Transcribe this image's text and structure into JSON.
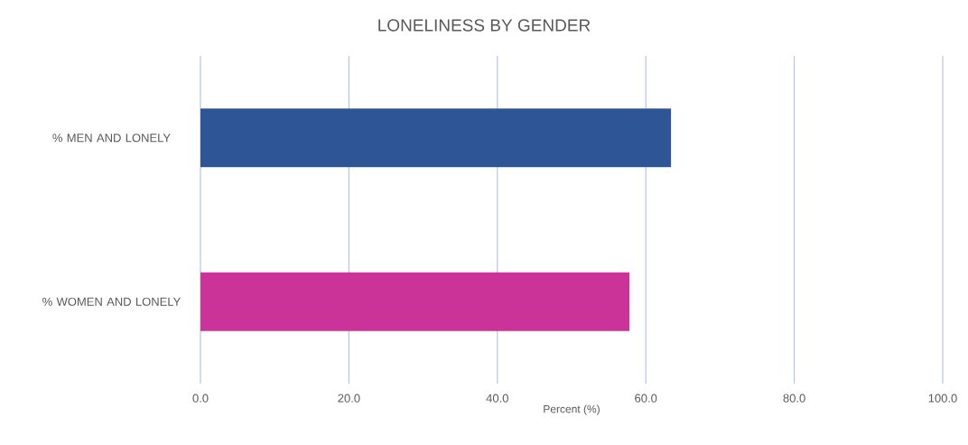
{
  "chart_data": {
    "type": "bar",
    "orientation": "horizontal",
    "title": "LONELINESS BY GENDER",
    "xlabel": "Percent (%)",
    "categories": [
      "% MEN AND LONELY",
      "% WOMEN AND LONELY"
    ],
    "values": [
      63.4,
      57.8
    ],
    "colors": [
      "#2e5596",
      "#cc3399"
    ],
    "xlim": [
      0,
      100
    ],
    "xticks": [
      {
        "value": 0,
        "label": "0.0"
      },
      {
        "value": 20,
        "label": "20.0"
      },
      {
        "value": 40,
        "label": "40.0"
      },
      {
        "value": 60,
        "label": "60.0"
      },
      {
        "value": 80,
        "label": "80.0"
      },
      {
        "value": 100,
        "label": "100.0"
      }
    ],
    "grid": "x"
  }
}
